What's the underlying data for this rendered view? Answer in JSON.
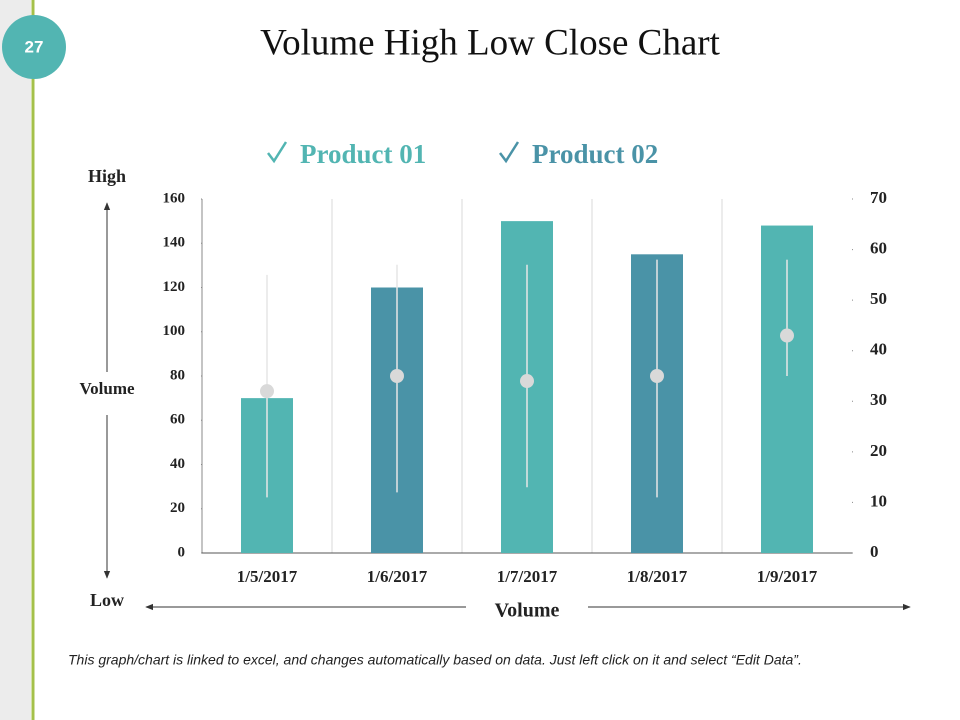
{
  "slide_number": "27",
  "footer": "This graph/chart is linked to excel, and changes automatically based on data. Just left click on it and select “Edit Data”.",
  "chart_data": {
    "type": "stock",
    "title": "Volume High Low Close Chart",
    "legend": [
      {
        "name": "Product 01",
        "color": "#52b5b2"
      },
      {
        "name": "Product 02",
        "color": "#4a93a7"
      }
    ],
    "y_label_top": "High",
    "y_label": "Volume",
    "y_label_bottom": "Low",
    "x_label": "Volume",
    "categories": [
      "1/5/2017",
      "1/6/2017",
      "1/7/2017",
      "1/8/2017",
      "1/9/2017"
    ],
    "volume": {
      "values": [
        70,
        120,
        150,
        135,
        148
      ],
      "colors": [
        "#52b5b2",
        "#4a93a7",
        "#52b5b2",
        "#4a93a7",
        "#52b5b2"
      ]
    },
    "hlc": {
      "high": [
        55,
        57,
        57,
        58,
        58
      ],
      "low": [
        11,
        12,
        13,
        11,
        35
      ],
      "close": [
        32,
        35,
        34,
        35,
        43
      ],
      "line_color": "#e6e6e6",
      "marker_color": "#d9d9d9",
      "axis": "y2"
    },
    "ylim": [
      0,
      160
    ],
    "yticks": [
      0,
      20,
      40,
      60,
      80,
      100,
      120,
      140,
      160
    ],
    "y2lim": [
      0,
      70
    ],
    "y2ticks": [
      0,
      10,
      20,
      30,
      40,
      50,
      60,
      70
    ],
    "grid": true
  }
}
